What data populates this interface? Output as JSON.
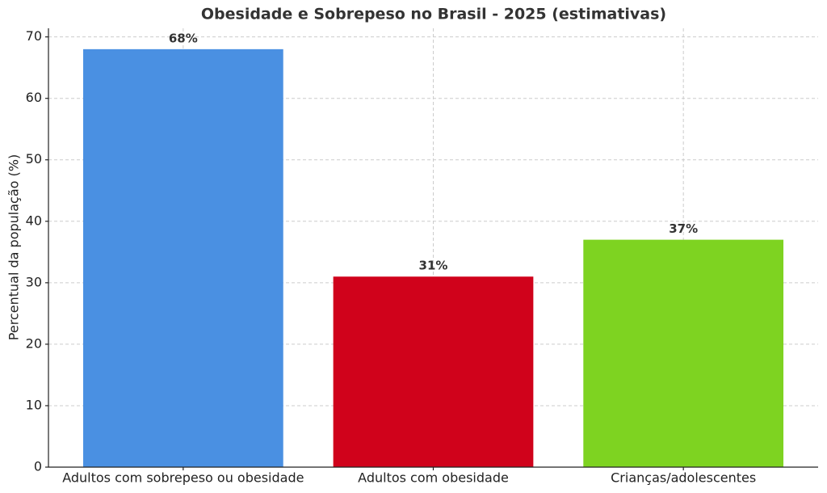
{
  "chart_data": {
    "type": "bar",
    "title": "Obesidade e Sobrepeso no Brasil - 2025 (estimativas)",
    "y_label": "Percentual da população (%)",
    "categories": [
      "Adultos com sobrepeso ou obesidade",
      "Adultos com obesidade",
      "Crianças/adolescentes"
    ],
    "values": [
      68,
      31,
      37
    ],
    "value_labels": [
      "68%",
      "31%",
      "37%"
    ],
    "colors": [
      "#4a90e2",
      "#d0021b",
      "#7ed321"
    ],
    "ylim": [
      0,
      71.4
    ],
    "yticks": [
      0,
      10,
      20,
      30,
      40,
      50,
      60,
      70
    ],
    "grid": true
  }
}
